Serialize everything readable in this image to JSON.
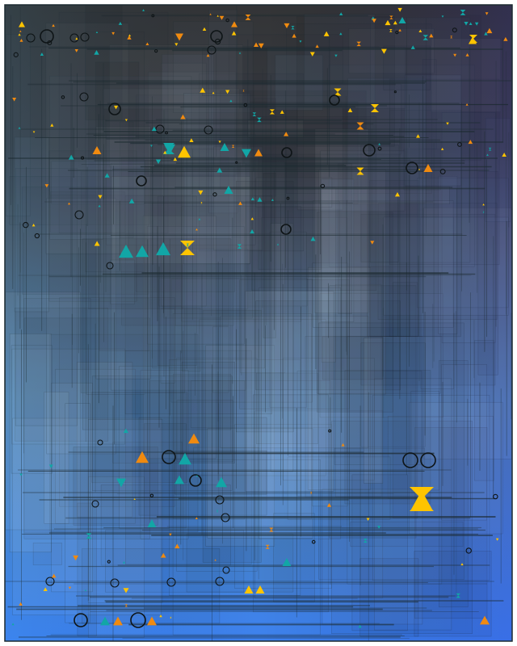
{
  "artwork": {
    "kind": "generative-abstract",
    "palette": {
      "background": "#ffffff",
      "top_dark": "#333436",
      "mid_slate": "#4b5a6c",
      "mid_blue": "#4f7fb0",
      "bottom_blue": "#3b7cf0",
      "right_indigo": "#3d4fc8",
      "line_dark": "#1c2a30",
      "accent_amber": "#ffc400",
      "accent_orange": "#f08a10",
      "accent_teal": "#12a6a6",
      "ring": "#0e1416"
    },
    "marker_shapes": [
      "triangle-up",
      "triangle-down",
      "hourglass",
      "ring"
    ]
  }
}
